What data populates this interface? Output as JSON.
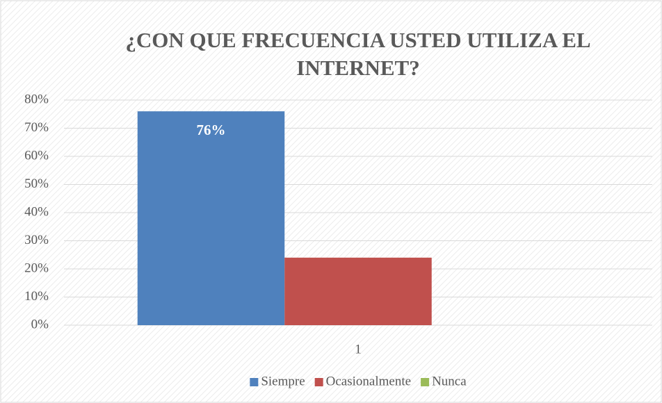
{
  "chart_data": {
    "type": "bar",
    "title": "¿CON QUE FRECUENCIA USTED UTILIZA EL INTERNET?",
    "categories": [
      "1"
    ],
    "series": [
      {
        "name": "Siempre",
        "color": "#4f81bd",
        "values": [
          76
        ],
        "value_labels": [
          "76%"
        ]
      },
      {
        "name": "Ocasionalmente",
        "color": "#c0504d",
        "values": [
          24
        ]
      },
      {
        "name": "Nunca",
        "color": "#9bbb59",
        "values": [
          0
        ]
      }
    ],
    "ylim": [
      0,
      80
    ],
    "yticks": [
      {
        "value": 0,
        "label": "0%"
      },
      {
        "value": 10,
        "label": "10%"
      },
      {
        "value": 20,
        "label": "20%"
      },
      {
        "value": 30,
        "label": "30%"
      },
      {
        "value": 40,
        "label": "40%"
      },
      {
        "value": 50,
        "label": "50%"
      },
      {
        "value": 60,
        "label": "60%"
      },
      {
        "value": 70,
        "label": "70%"
      },
      {
        "value": 80,
        "label": "80%"
      }
    ],
    "grid": true,
    "legend": "bottom"
  }
}
